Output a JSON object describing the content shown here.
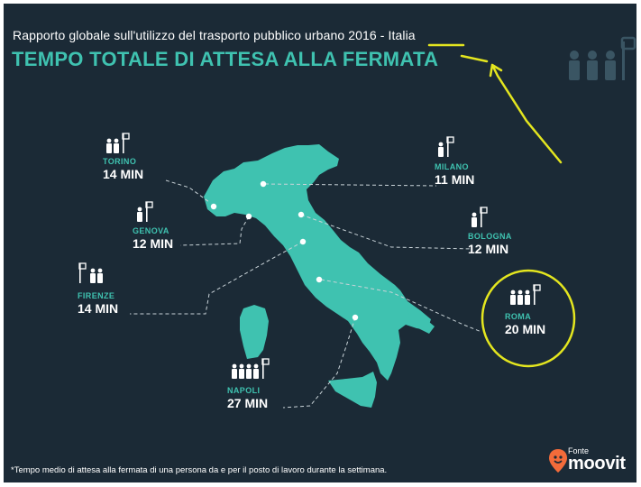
{
  "header": {
    "subtitle": "Rapporto globale sull'utilizzo del trasporto pubblico urbano 2016 - Italia",
    "title": "TEMPO TOTALE DI ATTESA ALLA FERMATA"
  },
  "cities": [
    {
      "name": "TORINO",
      "wait": "14 MIN",
      "people": 2
    },
    {
      "name": "MILANO",
      "wait": "11 MIN",
      "people": 1
    },
    {
      "name": "GENOVA",
      "wait": "12 MIN",
      "people": 1
    },
    {
      "name": "BOLOGNA",
      "wait": "12 MIN",
      "people": 1
    },
    {
      "name": "FIRENZE",
      "wait": "14 MIN",
      "people": 2
    },
    {
      "name": "ROMA",
      "wait": "20 MIN",
      "people": 3
    },
    {
      "name": "NAPOLI",
      "wait": "27 MIN",
      "people": 4
    }
  ],
  "footnote": "*Tempo medio di attesa alla fermata di una persona da e per il posto di lavoro durante la settimana.",
  "brand": {
    "source_label": "Fonte",
    "name": "moovit"
  },
  "colors": {
    "background": "#1b2a36",
    "accent": "#3fc2b0",
    "annotation": "#e4e61f",
    "text": "#ffffff"
  }
}
